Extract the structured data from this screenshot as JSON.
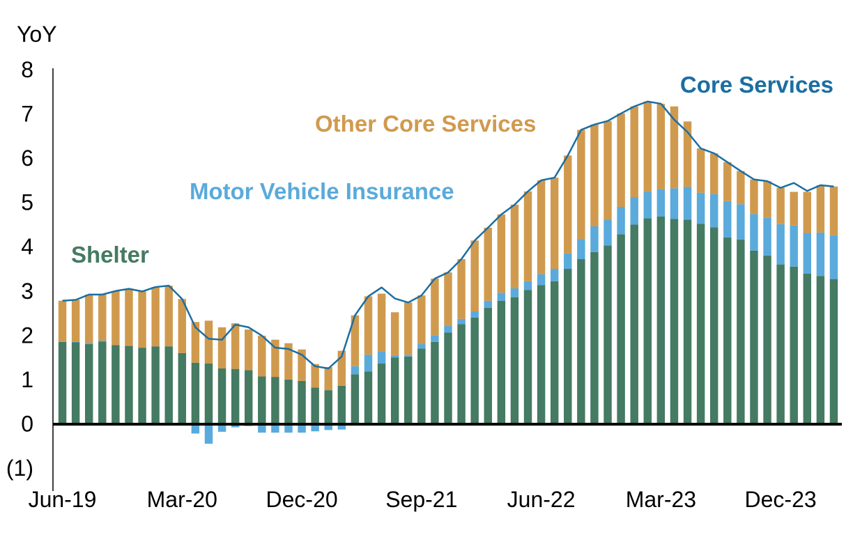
{
  "chart_data": {
    "type": "bar",
    "ylabel": "YoY",
    "ylim": [
      -1,
      8
    ],
    "yticks": [
      {
        "value": 8,
        "label": "8"
      },
      {
        "value": 7,
        "label": "7"
      },
      {
        "value": 6,
        "label": "6"
      },
      {
        "value": 5,
        "label": "5"
      },
      {
        "value": 4,
        "label": "4"
      },
      {
        "value": 3,
        "label": "3"
      },
      {
        "value": 2,
        "label": "2"
      },
      {
        "value": 1,
        "label": "1"
      },
      {
        "value": 0,
        "label": "0"
      },
      {
        "value": -1,
        "label": "(1)"
      }
    ],
    "x_tick_labels": [
      {
        "index": 0,
        "label": "Jun-19"
      },
      {
        "index": 9,
        "label": "Mar-20"
      },
      {
        "index": 18,
        "label": "Dec-20"
      },
      {
        "index": 27,
        "label": "Sep-21"
      },
      {
        "index": 36,
        "label": "Jun-22"
      },
      {
        "index": 45,
        "label": "Mar-23"
      },
      {
        "index": 54,
        "label": "Dec-23"
      }
    ],
    "categories": [
      "Jun-19",
      "Jul-19",
      "Aug-19",
      "Sep-19",
      "Oct-19",
      "Nov-19",
      "Dec-19",
      "Jan-20",
      "Feb-20",
      "Mar-20",
      "Apr-20",
      "May-20",
      "Jun-20",
      "Jul-20",
      "Aug-20",
      "Sep-20",
      "Oct-20",
      "Nov-20",
      "Dec-20",
      "Jan-21",
      "Feb-21",
      "Mar-21",
      "Apr-21",
      "May-21",
      "Jun-21",
      "Jul-21",
      "Aug-21",
      "Sep-21",
      "Oct-21",
      "Nov-21",
      "Dec-21",
      "Jan-22",
      "Feb-22",
      "Mar-22",
      "Apr-22",
      "May-22",
      "Jun-22",
      "Jul-22",
      "Aug-22",
      "Sep-22",
      "Oct-22",
      "Nov-22",
      "Dec-22",
      "Jan-23",
      "Feb-23",
      "Mar-23",
      "Apr-23",
      "May-23",
      "Jun-23",
      "Jul-23",
      "Aug-23",
      "Sep-23",
      "Oct-23",
      "Nov-23",
      "Dec-23",
      "Jan-24",
      "Feb-24",
      "Mar-24",
      "Apr-24"
    ],
    "series": [
      {
        "name": "Shelter",
        "kind": "stacked-bar",
        "color": "#457a63",
        "values": [
          1.85,
          1.84,
          1.8,
          1.86,
          1.78,
          1.76,
          1.72,
          1.75,
          1.75,
          1.6,
          1.38,
          1.36,
          1.25,
          1.24,
          1.21,
          1.07,
          1.06,
          1.0,
          0.97,
          0.82,
          0.76,
          0.86,
          1.12,
          1.18,
          1.36,
          1.5,
          1.52,
          1.7,
          1.85,
          2.06,
          2.25,
          2.4,
          2.62,
          2.78,
          2.86,
          3.02,
          3.13,
          3.22,
          3.5,
          3.72,
          3.88,
          4.03,
          4.28,
          4.5,
          4.64,
          4.68,
          4.63,
          4.61,
          4.52,
          4.44,
          4.21,
          4.16,
          3.91,
          3.8,
          3.6,
          3.55,
          3.39,
          3.34,
          3.27
        ]
      },
      {
        "name": "Motor Vehicle Insurance",
        "kind": "stacked-bar",
        "color": "#5aaadc",
        "values": [
          0.0,
          0.02,
          0.03,
          0.02,
          0.0,
          0.0,
          0.0,
          0.0,
          0.0,
          0.0,
          -0.22,
          -0.45,
          -0.18,
          -0.08,
          -0.05,
          -0.2,
          -0.2,
          -0.2,
          -0.2,
          -0.17,
          -0.14,
          -0.13,
          0.18,
          0.38,
          0.28,
          0.05,
          0.04,
          0.1,
          0.15,
          0.15,
          0.12,
          0.14,
          0.16,
          0.18,
          0.2,
          0.2,
          0.25,
          0.28,
          0.35,
          0.45,
          0.58,
          0.58,
          0.62,
          0.62,
          0.6,
          0.62,
          0.69,
          0.74,
          0.7,
          0.75,
          0.82,
          0.8,
          0.83,
          0.85,
          0.91,
          0.93,
          0.92,
          0.98,
          0.99
        ]
      },
      {
        "name": "Other Core Services",
        "kind": "stacked-bar",
        "color": "#d09a4e",
        "values": [
          0.93,
          0.94,
          1.09,
          1.04,
          1.22,
          1.29,
          1.27,
          1.34,
          1.37,
          1.22,
          0.92,
          0.97,
          0.93,
          1.03,
          0.92,
          0.92,
          0.84,
          0.82,
          0.71,
          0.53,
          0.52,
          0.79,
          1.15,
          1.32,
          1.3,
          0.97,
          1.18,
          1.1,
          1.28,
          1.21,
          1.35,
          1.6,
          1.65,
          1.77,
          1.89,
          2.03,
          2.12,
          2.06,
          2.21,
          2.47,
          2.3,
          2.23,
          2.11,
          2.05,
          2.04,
          1.93,
          1.85,
          1.48,
          1.0,
          0.92,
          0.88,
          0.75,
          0.78,
          0.83,
          0.82,
          0.76,
          0.93,
          1.07,
          1.1
        ]
      },
      {
        "name": "Core Services",
        "kind": "line",
        "color": "#1b6ea2",
        "values": [
          2.78,
          2.8,
          2.92,
          2.92,
          3.0,
          3.05,
          2.99,
          3.09,
          3.12,
          2.82,
          2.18,
          1.92,
          1.9,
          2.24,
          2.18,
          1.99,
          1.72,
          1.69,
          1.56,
          1.3,
          1.25,
          1.52,
          2.45,
          2.88,
          3.08,
          2.83,
          2.74,
          2.9,
          3.28,
          3.42,
          3.72,
          4.14,
          4.43,
          4.73,
          4.95,
          5.25,
          5.5,
          5.56,
          6.06,
          6.64,
          6.76,
          6.84,
          7.01,
          7.17,
          7.28,
          7.23,
          6.87,
          6.59,
          6.22,
          6.11,
          5.91,
          5.71,
          5.52,
          5.48,
          5.33,
          5.44,
          5.26,
          5.39,
          5.36
        ]
      }
    ],
    "series_labels": [
      {
        "name": "Core Services",
        "color": "#1b6ea2"
      },
      {
        "name": "Other Core Services",
        "color": "#d09a4e"
      },
      {
        "name": "Motor Vehicle Insurance",
        "color": "#5aaadc"
      },
      {
        "name": "Shelter",
        "color": "#457a63"
      }
    ],
    "grid": false,
    "legend": "inline labels"
  }
}
